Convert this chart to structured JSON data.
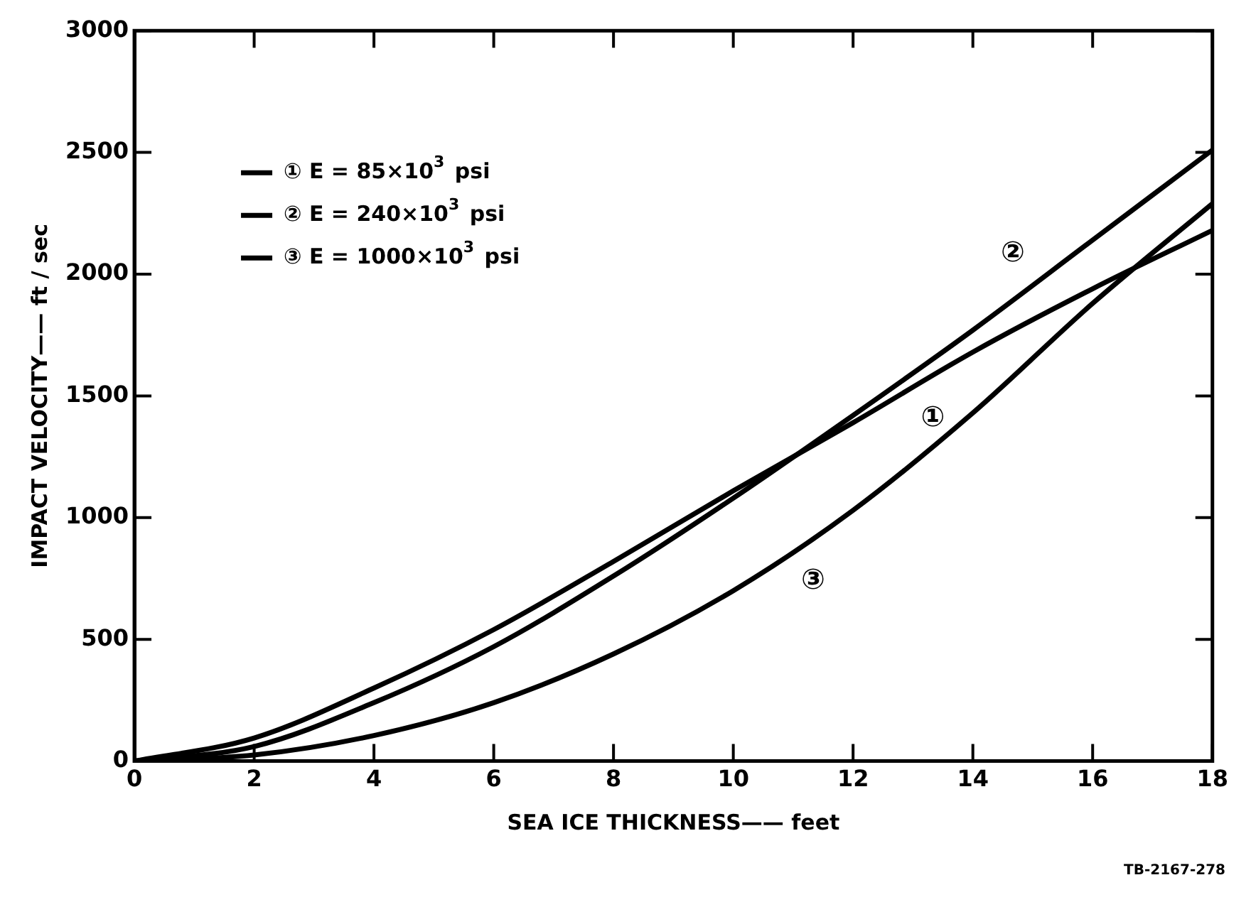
{
  "chart_data": {
    "type": "line",
    "xlabel": "SEA ICE THICKNESS—— feet",
    "ylabel": "IMPACT VELOCITY—— ft / sec",
    "x": [
      0,
      2,
      4,
      6,
      8,
      10,
      12,
      14,
      16,
      18
    ],
    "series": [
      {
        "name": "① E = 85×10$^{3}$ psi",
        "color": "#000000",
        "values": [
          0,
          95,
          300,
          540,
          820,
          1110,
          1390,
          1680,
          1940,
          2180
        ]
      },
      {
        "name": "② E = 240×10$^{3}$ psi",
        "color": "#000000",
        "values": [
          0,
          60,
          240,
          470,
          760,
          1080,
          1420,
          1770,
          2140,
          2510
        ]
      },
      {
        "name": "③ E = 1000×10$^{3}$ psi",
        "color": "#000000",
        "values": [
          0,
          25,
          105,
          240,
          440,
          700,
          1030,
          1430,
          1880,
          2290
        ]
      }
    ],
    "xlim": [
      0,
      18
    ],
    "xticks": [
      0,
      2,
      4,
      6,
      8,
      10,
      12,
      14,
      16,
      18
    ],
    "ylim": [
      0,
      3000
    ],
    "yticks": [
      0,
      500,
      1000,
      1500,
      2000,
      2500,
      3000
    ],
    "grid": false,
    "legend": "top left",
    "marker": "none",
    "annotations": [
      {
        "text": "①",
        "x": 13,
        "y": 1535
      },
      {
        "text": "②",
        "x": 15,
        "y": 1955
      },
      {
        "text": "③",
        "x": 11,
        "y": 865
      },
      "TB-2167-278"
    ]
  }
}
